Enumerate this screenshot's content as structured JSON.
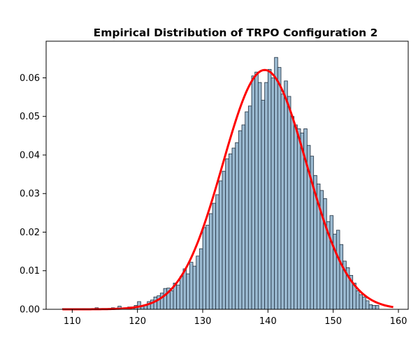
{
  "chart_data": {
    "type": "bar",
    "title": "Empirical Distribution of TRPO Configuration 2",
    "xlabel": "",
    "ylabel": "",
    "xlim": [
      106,
      161.5
    ],
    "ylim": [
      0,
      0.0695
    ],
    "x_ticks": [
      110,
      120,
      130,
      140,
      150,
      160
    ],
    "x_tick_labels": [
      "110",
      "120",
      "130",
      "140",
      "150",
      "160"
    ],
    "y_ticks": [
      0,
      0.01,
      0.02,
      0.03,
      0.04,
      0.05,
      0.06
    ],
    "y_tick_labels": [
      "0.00",
      "0.01",
      "0.02",
      "0.03",
      "0.04",
      "0.05",
      "0.06"
    ],
    "grid": false,
    "series": [
      {
        "kind": "histogram",
        "color": "#9bbad1",
        "edge_color": "#1f2f3f",
        "bin_width": 0.5,
        "bins": [
          [
            108.5,
            0.0002
          ],
          [
            111.5,
            0.0002
          ],
          [
            113.5,
            0.0004
          ],
          [
            116.0,
            0.0004
          ],
          [
            117.0,
            0.0008
          ],
          [
            117.5,
            0.0002
          ],
          [
            118.0,
            0.0004
          ],
          [
            118.5,
            0.0006
          ],
          [
            119.0,
            0.0006
          ],
          [
            119.5,
            0.001
          ],
          [
            120.0,
            0.002
          ],
          [
            120.5,
            0.001
          ],
          [
            121.0,
            0.0012
          ],
          [
            121.5,
            0.002
          ],
          [
            122.0,
            0.0024
          ],
          [
            122.5,
            0.0032
          ],
          [
            123.0,
            0.0035
          ],
          [
            123.5,
            0.0042
          ],
          [
            124.0,
            0.0054
          ],
          [
            124.5,
            0.0055
          ],
          [
            125.0,
            0.0048
          ],
          [
            125.5,
            0.0068
          ],
          [
            126.0,
            0.0063
          ],
          [
            126.5,
            0.0085
          ],
          [
            127.0,
            0.0105
          ],
          [
            127.5,
            0.0092
          ],
          [
            128.0,
            0.0122
          ],
          [
            128.5,
            0.0112
          ],
          [
            129.0,
            0.0138
          ],
          [
            129.5,
            0.0157
          ],
          [
            130.0,
            0.0212
          ],
          [
            130.5,
            0.0218
          ],
          [
            131.0,
            0.0248
          ],
          [
            131.5,
            0.0275
          ],
          [
            132.0,
            0.0297
          ],
          [
            132.5,
            0.0333
          ],
          [
            133.0,
            0.0358
          ],
          [
            133.5,
            0.039
          ],
          [
            134.0,
            0.0403
          ],
          [
            134.5,
            0.0418
          ],
          [
            135.0,
            0.0432
          ],
          [
            135.5,
            0.0463
          ],
          [
            136.0,
            0.0478
          ],
          [
            136.5,
            0.0512
          ],
          [
            137.0,
            0.0527
          ],
          [
            137.5,
            0.0605
          ],
          [
            138.0,
            0.0615
          ],
          [
            138.5,
            0.0588
          ],
          [
            139.0,
            0.0542
          ],
          [
            139.5,
            0.0588
          ],
          [
            140.0,
            0.0622
          ],
          [
            140.5,
            0.06
          ],
          [
            141.0,
            0.0653
          ],
          [
            141.5,
            0.0627
          ],
          [
            142.0,
            0.0558
          ],
          [
            142.5,
            0.0592
          ],
          [
            143.0,
            0.0552
          ],
          [
            143.5,
            0.05
          ],
          [
            144.0,
            0.0478
          ],
          [
            144.5,
            0.0468
          ],
          [
            145.0,
            0.0457
          ],
          [
            145.5,
            0.0468
          ],
          [
            146.0,
            0.0425
          ],
          [
            146.5,
            0.0397
          ],
          [
            147.0,
            0.0347
          ],
          [
            147.5,
            0.0325
          ],
          [
            148.0,
            0.0308
          ],
          [
            148.5,
            0.0287
          ],
          [
            149.0,
            0.0227
          ],
          [
            149.5,
            0.0243
          ],
          [
            150.0,
            0.0195
          ],
          [
            150.5,
            0.0205
          ],
          [
            151.0,
            0.0168
          ],
          [
            151.5,
            0.0125
          ],
          [
            152.0,
            0.0108
          ],
          [
            152.5,
            0.0088
          ],
          [
            153.0,
            0.0068
          ],
          [
            153.5,
            0.0048
          ],
          [
            154.0,
            0.0038
          ],
          [
            154.5,
            0.0032
          ],
          [
            155.0,
            0.0022
          ],
          [
            155.5,
            0.0012
          ],
          [
            156.0,
            0.001
          ],
          [
            156.5,
            0.001
          ]
        ]
      },
      {
        "kind": "line",
        "color": "#ff0000",
        "curve": "normal_pdf",
        "mean": 139.5,
        "std": 6.43,
        "x_range": [
          108.5,
          159.2
        ]
      }
    ]
  }
}
